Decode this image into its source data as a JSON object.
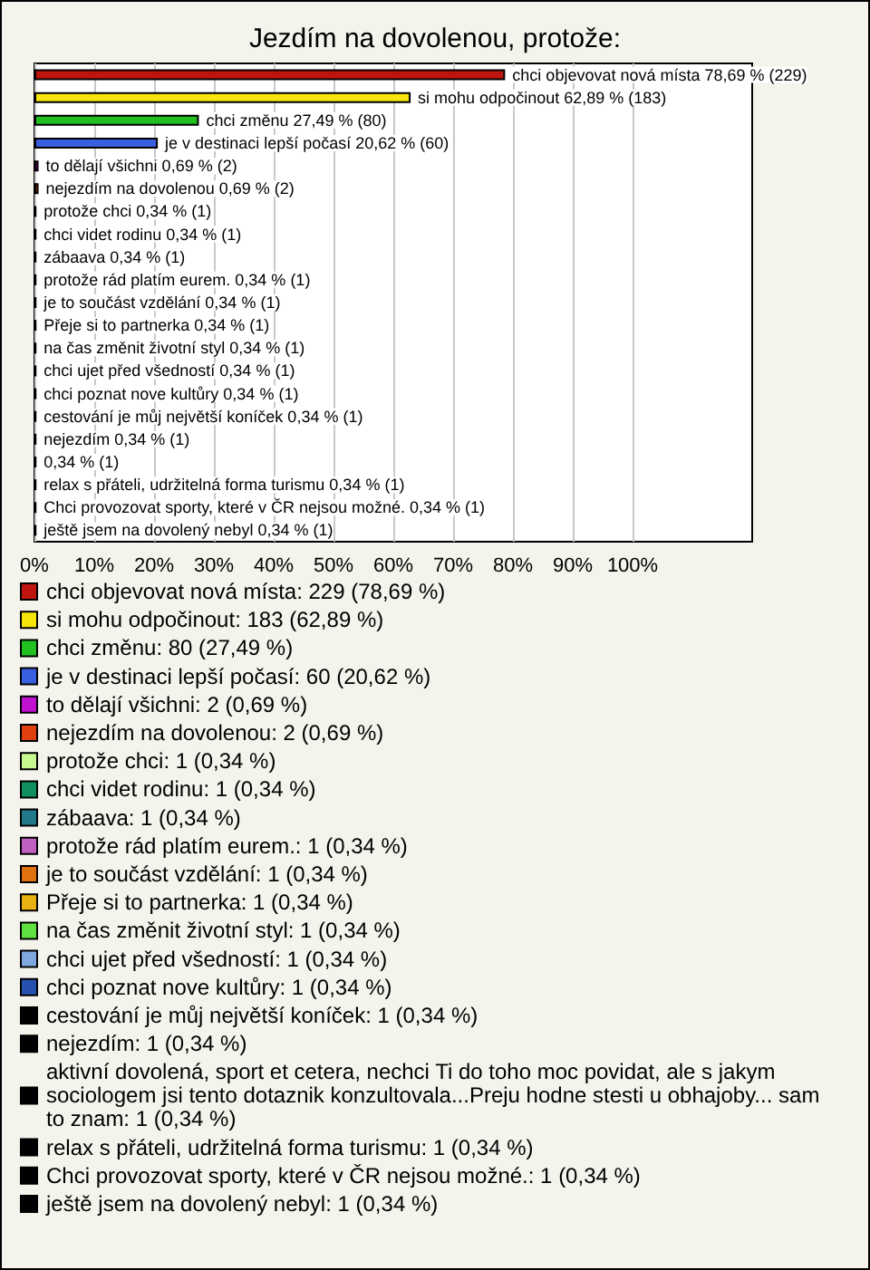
{
  "chart_data": {
    "type": "bar",
    "orientation": "horizontal",
    "stacked": true,
    "title": "Jezdím na dovolenou, protože:",
    "categories": [
      null,
      null,
      null,
      null,
      null,
      null,
      null,
      null,
      null,
      null,
      null,
      null,
      null,
      null,
      null,
      null,
      null,
      null,
      null,
      null,
      null
    ],
    "xlim": [
      0,
      120
    ],
    "xticks": [
      {
        "value": 0,
        "label": "0%"
      },
      {
        "value": 10,
        "label": "10%"
      },
      {
        "value": 20,
        "label": "20%"
      },
      {
        "value": 30,
        "label": "30%"
      },
      {
        "value": 40,
        "label": "40%"
      },
      {
        "value": 50,
        "label": "50%"
      },
      {
        "value": 60,
        "label": "60%"
      },
      {
        "value": 70,
        "label": "70%"
      },
      {
        "value": 80,
        "label": "80%"
      },
      {
        "value": 90,
        "label": "90%"
      },
      {
        "value": 100,
        "label": "100%"
      }
    ],
    "grid": "x",
    "tick_labels": "x",
    "legend": "bottom",
    "series": [
      {
        "name": "chci objevovat nová místa: 229 (78,69 %)",
        "color": "#c0150f",
        "values": [
          78.69,
          null,
          null,
          null,
          null,
          null,
          null,
          null,
          null,
          null,
          null,
          null,
          null,
          null,
          null,
          null,
          null,
          null,
          null,
          null,
          null
        ],
        "value_labels": [
          "chci objevovat nová místa 78,69 % (229)",
          null,
          null,
          null,
          null,
          null,
          null,
          null,
          null,
          null,
          null,
          null,
          null,
          null,
          null,
          null,
          null,
          null,
          null,
          null,
          null
        ]
      },
      {
        "name": "si mohu odpočinout: 183 (62,89 %)",
        "color": "#f5e50a",
        "values": [
          null,
          62.89,
          null,
          null,
          null,
          null,
          null,
          null,
          null,
          null,
          null,
          null,
          null,
          null,
          null,
          null,
          null,
          null,
          null,
          null,
          null
        ],
        "value_labels": [
          null,
          "si mohu odpočinout 62,89 % (183)",
          null,
          null,
          null,
          null,
          null,
          null,
          null,
          null,
          null,
          null,
          null,
          null,
          null,
          null,
          null,
          null,
          null,
          null,
          null
        ]
      },
      {
        "name": "chci změnu: 80 (27,49 %)",
        "color": "#1fc01f",
        "values": [
          null,
          null,
          27.49,
          null,
          null,
          null,
          null,
          null,
          null,
          null,
          null,
          null,
          null,
          null,
          null,
          null,
          null,
          null,
          null,
          null,
          null
        ],
        "value_labels": [
          null,
          null,
          "chci změnu 27,49 % (80)",
          null,
          null,
          null,
          null,
          null,
          null,
          null,
          null,
          null,
          null,
          null,
          null,
          null,
          null,
          null,
          null,
          null,
          null
        ]
      },
      {
        "name": "je v destinaci lepší počasí: 60 (20,62 %)",
        "color": "#3a5fe0",
        "values": [
          null,
          null,
          null,
          20.62,
          null,
          null,
          null,
          null,
          null,
          null,
          null,
          null,
          null,
          null,
          null,
          null,
          null,
          null,
          null,
          null,
          null
        ],
        "value_labels": [
          null,
          null,
          null,
          "je v destinaci lepší počasí 20,62 % (60)",
          null,
          null,
          null,
          null,
          null,
          null,
          null,
          null,
          null,
          null,
          null,
          null,
          null,
          null,
          null,
          null,
          null
        ]
      },
      {
        "name": "to dělají všichni: 2 (0,69 %)",
        "color": "#c010d0",
        "values": [
          null,
          null,
          null,
          null,
          0.69,
          null,
          null,
          null,
          null,
          null,
          null,
          null,
          null,
          null,
          null,
          null,
          null,
          null,
          null,
          null,
          null
        ],
        "value_labels": [
          null,
          null,
          null,
          null,
          "to dělají všichni 0,69 % (2)",
          null,
          null,
          null,
          null,
          null,
          null,
          null,
          null,
          null,
          null,
          null,
          null,
          null,
          null,
          null,
          null
        ]
      },
      {
        "name": "nejezdím na dovolenou: 2 (0,69 %)",
        "color": "#e04010",
        "values": [
          null,
          null,
          null,
          null,
          null,
          0.69,
          null,
          null,
          null,
          null,
          null,
          null,
          null,
          null,
          null,
          null,
          null,
          null,
          null,
          null,
          null
        ],
        "value_labels": [
          null,
          null,
          null,
          null,
          null,
          "nejezdím na dovolenou 0,69 % (2)",
          null,
          null,
          null,
          null,
          null,
          null,
          null,
          null,
          null,
          null,
          null,
          null,
          null,
          null,
          null
        ]
      },
      {
        "name": "protože chci: 1 (0,34 %)",
        "color": "#c8f890",
        "values": [
          null,
          null,
          null,
          null,
          null,
          null,
          0.34,
          null,
          null,
          null,
          null,
          null,
          null,
          null,
          null,
          null,
          null,
          null,
          null,
          null,
          null
        ],
        "value_labels": [
          null,
          null,
          null,
          null,
          null,
          null,
          "protože chci 0,34 % (1)",
          null,
          null,
          null,
          null,
          null,
          null,
          null,
          null,
          null,
          null,
          null,
          null,
          null,
          null
        ]
      },
      {
        "name": "chci videt rodinu: 1 (0,34 %)",
        "color": "#109060",
        "values": [
          null,
          null,
          null,
          null,
          null,
          null,
          null,
          0.34,
          null,
          null,
          null,
          null,
          null,
          null,
          null,
          null,
          null,
          null,
          null,
          null,
          null
        ],
        "value_labels": [
          null,
          null,
          null,
          null,
          null,
          null,
          null,
          "chci videt rodinu 0,34 % (1)",
          null,
          null,
          null,
          null,
          null,
          null,
          null,
          null,
          null,
          null,
          null,
          null,
          null
        ]
      },
      {
        "name": "zábaava: 1 (0,34 %)",
        "color": "#207888",
        "values": [
          null,
          null,
          null,
          null,
          null,
          null,
          null,
          null,
          0.34,
          null,
          null,
          null,
          null,
          null,
          null,
          null,
          null,
          null,
          null,
          null,
          null
        ],
        "value_labels": [
          null,
          null,
          null,
          null,
          null,
          null,
          null,
          null,
          "zábaava 0,34 % (1)",
          null,
          null,
          null,
          null,
          null,
          null,
          null,
          null,
          null,
          null,
          null,
          null
        ]
      },
      {
        "name": "protože rád platím eurem.: 1 (0,34 %)",
        "color": "#c060c0",
        "values": [
          null,
          null,
          null,
          null,
          null,
          null,
          null,
          null,
          null,
          0.34,
          null,
          null,
          null,
          null,
          null,
          null,
          null,
          null,
          null,
          null,
          null
        ],
        "value_labels": [
          null,
          null,
          null,
          null,
          null,
          null,
          null,
          null,
          null,
          "protože rád platím eurem. 0,34 % (1)",
          null,
          null,
          null,
          null,
          null,
          null,
          null,
          null,
          null,
          null,
          null
        ]
      },
      {
        "name": "je to součást vzdělání: 1 (0,34 %)",
        "color": "#e07010",
        "values": [
          null,
          null,
          null,
          null,
          null,
          null,
          null,
          null,
          null,
          null,
          0.34,
          null,
          null,
          null,
          null,
          null,
          null,
          null,
          null,
          null,
          null
        ],
        "value_labels": [
          null,
          null,
          null,
          null,
          null,
          null,
          null,
          null,
          null,
          null,
          "je to součást vzdělání 0,34 % (1)",
          null,
          null,
          null,
          null,
          null,
          null,
          null,
          null,
          null,
          null
        ]
      },
      {
        "name": "Přeje si to partnerka: 1 (0,34 %)",
        "color": "#e8b010",
        "values": [
          null,
          null,
          null,
          null,
          null,
          null,
          null,
          null,
          null,
          null,
          null,
          0.34,
          null,
          null,
          null,
          null,
          null,
          null,
          null,
          null,
          null
        ],
        "value_labels": [
          null,
          null,
          null,
          null,
          null,
          null,
          null,
          null,
          null,
          null,
          null,
          "Přeje si to partnerka 0,34 % (1)",
          null,
          null,
          null,
          null,
          null,
          null,
          null,
          null,
          null
        ]
      },
      {
        "name": "na čas změnit životní styl: 1 (0,34 %)",
        "color": "#60e040",
        "values": [
          null,
          null,
          null,
          null,
          null,
          null,
          null,
          null,
          null,
          null,
          null,
          null,
          0.34,
          null,
          null,
          null,
          null,
          null,
          null,
          null,
          null
        ],
        "value_labels": [
          null,
          null,
          null,
          null,
          null,
          null,
          null,
          null,
          null,
          null,
          null,
          null,
          "na čas změnit životní styl 0,34 % (1)",
          null,
          null,
          null,
          null,
          null,
          null,
          null,
          null
        ]
      },
      {
        "name": "chci ujet před všedností: 1 (0,34 %)",
        "color": "#80a8e0",
        "values": [
          null,
          null,
          null,
          null,
          null,
          null,
          null,
          null,
          null,
          null,
          null,
          null,
          null,
          0.34,
          null,
          null,
          null,
          null,
          null,
          null,
          null
        ],
        "value_labels": [
          null,
          null,
          null,
          null,
          null,
          null,
          null,
          null,
          null,
          null,
          null,
          null,
          null,
          "chci ujet před všedností 0,34 % (1)",
          null,
          null,
          null,
          null,
          null,
          null,
          null
        ]
      },
      {
        "name": "chci poznat nove kultůry: 1 (0,34 %)",
        "color": "#2850b0",
        "values": [
          null,
          null,
          null,
          null,
          null,
          null,
          null,
          null,
          null,
          null,
          null,
          null,
          null,
          null,
          0.34,
          null,
          null,
          null,
          null,
          null,
          null
        ],
        "value_labels": [
          null,
          null,
          null,
          null,
          null,
          null,
          null,
          null,
          null,
          null,
          null,
          null,
          null,
          null,
          "chci poznat nove kultůry 0,34 % (1)",
          null,
          null,
          null,
          null,
          null,
          null
        ]
      },
      {
        "name": "cestování je můj největší koníček: 1 (0,34 %)",
        "color": "#000000",
        "values": [
          null,
          null,
          null,
          null,
          null,
          null,
          null,
          null,
          null,
          null,
          null,
          null,
          null,
          null,
          null,
          0.34,
          null,
          null,
          null,
          null,
          null
        ],
        "value_labels": [
          null,
          null,
          null,
          null,
          null,
          null,
          null,
          null,
          null,
          null,
          null,
          null,
          null,
          null,
          null,
          "cestování je můj největší koníček 0,34 % (1)",
          null,
          null,
          null,
          null,
          null
        ]
      },
      {
        "name": "nejezdím: 1 (0,34 %)",
        "color": "#000000",
        "values": [
          null,
          null,
          null,
          null,
          null,
          null,
          null,
          null,
          null,
          null,
          null,
          null,
          null,
          null,
          null,
          null,
          0.34,
          null,
          null,
          null,
          null
        ],
        "value_labels": [
          null,
          null,
          null,
          null,
          null,
          null,
          null,
          null,
          null,
          null,
          null,
          null,
          null,
          null,
          null,
          null,
          "nejezdím 0,34 % (1)",
          null,
          null,
          null,
          null
        ]
      },
      {
        "name": "aktivní dovolená, sport et cetera, nechci Ti do toho moc povidat, ale s jakym sociologem jsi tento dotaznik konzultovala...Preju hodne stesti u obhajoby... sam to znam: 1 (0,34 %)",
        "color": "#000000",
        "values": [
          null,
          null,
          null,
          null,
          null,
          null,
          null,
          null,
          null,
          null,
          null,
          null,
          null,
          null,
          null,
          null,
          null,
          0.34,
          null,
          null,
          null
        ],
        "value_labels": [
          null,
          null,
          null,
          null,
          null,
          null,
          null,
          null,
          null,
          null,
          null,
          null,
          null,
          null,
          null,
          null,
          null,
          "0,34 % (1)",
          null,
          null,
          null
        ]
      },
      {
        "name": "relax s přáteli, udržitelná forma turismu: 1 (0,34 %)",
        "color": "#000000",
        "values": [
          null,
          null,
          null,
          null,
          null,
          null,
          null,
          null,
          null,
          null,
          null,
          null,
          null,
          null,
          null,
          null,
          null,
          null,
          0.34,
          null,
          null
        ],
        "value_labels": [
          null,
          null,
          null,
          null,
          null,
          null,
          null,
          null,
          null,
          null,
          null,
          null,
          null,
          null,
          null,
          null,
          null,
          null,
          "relax s přáteli, udržitelná forma turismu 0,34 % (1)",
          null,
          null
        ]
      },
      {
        "name": "Chci provozovat sporty, které v ČR nejsou možné.: 1 (0,34 %)",
        "color": "#000000",
        "values": [
          null,
          null,
          null,
          null,
          null,
          null,
          null,
          null,
          null,
          null,
          null,
          null,
          null,
          null,
          null,
          null,
          null,
          null,
          null,
          0.34,
          null
        ],
        "value_labels": [
          null,
          null,
          null,
          null,
          null,
          null,
          null,
          null,
          null,
          null,
          null,
          null,
          null,
          null,
          null,
          null,
          null,
          null,
          null,
          "Chci provozovat sporty, které v ČR nejsou možné. 0,34 % (1)",
          null
        ]
      },
      {
        "name": "ještě jsem na dovolený nebyl: 1 (0,34 %)",
        "color": "#000000",
        "values": [
          null,
          null,
          null,
          null,
          null,
          null,
          null,
          null,
          null,
          null,
          null,
          null,
          null,
          null,
          null,
          null,
          null,
          null,
          null,
          null,
          0.34
        ],
        "value_labels": [
          null,
          null,
          null,
          null,
          null,
          null,
          null,
          null,
          null,
          null,
          null,
          null,
          null,
          null,
          null,
          null,
          null,
          null,
          null,
          null,
          "ještě jsem na dovolený nebyl 0,34 % (1)"
        ]
      }
    ]
  }
}
